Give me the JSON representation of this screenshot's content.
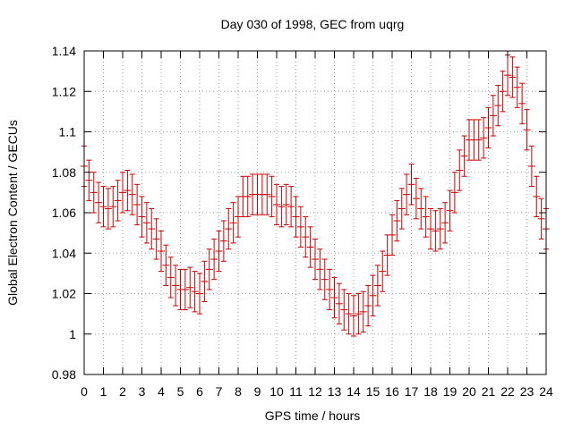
{
  "chart_data": {
    "type": "errorbar",
    "title": "Day 030 of 1998, GEC from uqrg",
    "xlabel": "GPS time / hours",
    "ylabel": "Global Electron Content / GECUs",
    "xlim": [
      0,
      24
    ],
    "ylim": [
      0.98,
      1.14
    ],
    "x_ticks": [
      0,
      1,
      2,
      3,
      4,
      5,
      6,
      7,
      8,
      9,
      10,
      11,
      12,
      13,
      14,
      15,
      16,
      17,
      18,
      19,
      20,
      21,
      22,
      23,
      24
    ],
    "x_tick_labels": [
      "0",
      "1",
      "2",
      "3",
      "4",
      "5",
      "6",
      "7",
      "8",
      "9",
      "10",
      "11",
      "12",
      "13",
      "14",
      "15",
      "16",
      "17",
      "18",
      "19",
      "20",
      "21",
      "22",
      "23",
      "24"
    ],
    "y_ticks": [
      0.98,
      1.0,
      1.02,
      1.04,
      1.06,
      1.08,
      1.1,
      1.12,
      1.14
    ],
    "y_tick_labels": [
      "0.98",
      "1",
      "1.02",
      "1.04",
      "1.06",
      "1.08",
      "1.1",
      "1.12",
      "1.14"
    ],
    "grid": true,
    "error": 0.01,
    "series": [
      {
        "name": "GEC",
        "color": "#cc0000",
        "x": [
          0,
          0.25,
          0.5,
          0.75,
          1,
          1.25,
          1.5,
          1.75,
          2,
          2.25,
          2.5,
          2.75,
          3,
          3.25,
          3.5,
          3.75,
          4,
          4.25,
          4.5,
          4.75,
          5,
          5.25,
          5.5,
          5.75,
          6,
          6.25,
          6.5,
          6.75,
          7,
          7.25,
          7.5,
          7.75,
          8,
          8.25,
          8.5,
          8.75,
          9,
          9.25,
          9.5,
          9.75,
          10,
          10.25,
          10.5,
          10.75,
          11,
          11.25,
          11.5,
          11.75,
          12,
          12.25,
          12.5,
          12.75,
          13,
          13.25,
          13.5,
          13.75,
          14,
          14.25,
          14.5,
          14.75,
          15,
          15.25,
          15.5,
          15.75,
          16,
          16.25,
          16.5,
          16.75,
          17,
          17.25,
          17.5,
          17.75,
          18,
          18.25,
          18.5,
          18.75,
          19,
          19.25,
          19.5,
          19.75,
          20,
          20.25,
          20.5,
          20.75,
          21,
          21.25,
          21.5,
          21.75,
          22,
          22.25,
          22.5,
          22.75,
          23,
          23.25,
          23.5,
          23.75,
          24
        ],
        "y": [
          1.083,
          1.076,
          1.07,
          1.065,
          1.063,
          1.062,
          1.063,
          1.066,
          1.07,
          1.071,
          1.069,
          1.064,
          1.058,
          1.055,
          1.052,
          1.047,
          1.041,
          1.034,
          1.028,
          1.024,
          1.022,
          1.022,
          1.023,
          1.021,
          1.02,
          1.026,
          1.032,
          1.037,
          1.041,
          1.046,
          1.052,
          1.055,
          1.058,
          1.068,
          1.068,
          1.069,
          1.069,
          1.069,
          1.069,
          1.068,
          1.064,
          1.063,
          1.064,
          1.063,
          1.058,
          1.053,
          1.048,
          1.043,
          1.037,
          1.032,
          1.027,
          1.022,
          1.018,
          1.015,
          1.012,
          1.01,
          1.009,
          1.01,
          1.011,
          1.014,
          1.019,
          1.024,
          1.031,
          1.039,
          1.049,
          1.056,
          1.062,
          1.069,
          1.074,
          1.067,
          1.062,
          1.058,
          1.052,
          1.051,
          1.052,
          1.055,
          1.061,
          1.07,
          1.081,
          1.088,
          1.096,
          1.096,
          1.096,
          1.097,
          1.102,
          1.108,
          1.113,
          1.12,
          1.128,
          1.127,
          1.122,
          1.114,
          1.101,
          1.083,
          1.068,
          1.057,
          1.052
        ]
      }
    ]
  }
}
